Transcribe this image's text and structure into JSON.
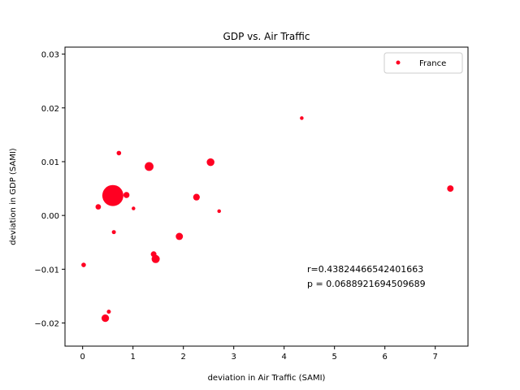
{
  "chart_data": {
    "type": "scatter",
    "title": "GDP vs. Air Traffic",
    "xlabel": "deviation in Air Traffic (SAMI)",
    "ylabel": "deviation in GDP (SAMI)",
    "xlim": [
      -0.35,
      7.65
    ],
    "ylim": [
      -0.0243,
      0.0313
    ],
    "xticks": [
      0,
      1,
      2,
      3,
      4,
      5,
      6,
      7
    ],
    "xtick_labels": [
      "0",
      "1",
      "2",
      "3",
      "4",
      "5",
      "6",
      "7"
    ],
    "yticks": [
      -0.02,
      -0.01,
      0.0,
      0.01,
      0.02,
      0.03
    ],
    "ytick_labels": [
      "−0.02",
      "−0.01",
      "0.00",
      "0.01",
      "0.02",
      "0.03"
    ],
    "grid": false,
    "legend_position": "top-right",
    "series": [
      {
        "name": "France",
        "color": "#ff0022",
        "points": [
          {
            "x": 0.02,
            "y": -0.0092,
            "size": 14
          },
          {
            "x": 0.31,
            "y": 0.0016,
            "size": 20
          },
          {
            "x": 0.45,
            "y": -0.0191,
            "size": 38
          },
          {
            "x": 0.52,
            "y": -0.0179,
            "size": 11
          },
          {
            "x": 0.6,
            "y": 0.0037,
            "size": 300
          },
          {
            "x": 0.62,
            "y": -0.0031,
            "size": 11
          },
          {
            "x": 0.72,
            "y": 0.0116,
            "size": 14
          },
          {
            "x": 0.87,
            "y": 0.0038,
            "size": 25
          },
          {
            "x": 1.01,
            "y": 0.0013,
            "size": 9
          },
          {
            "x": 1.32,
            "y": 0.0091,
            "size": 52
          },
          {
            "x": 1.41,
            "y": -0.0072,
            "size": 22
          },
          {
            "x": 1.45,
            "y": -0.0081,
            "size": 45
          },
          {
            "x": 1.92,
            "y": -0.0039,
            "size": 35
          },
          {
            "x": 2.26,
            "y": 0.0034,
            "size": 30
          },
          {
            "x": 2.54,
            "y": 0.0099,
            "size": 40
          },
          {
            "x": 2.71,
            "y": 0.0008,
            "size": 9
          },
          {
            "x": 4.35,
            "y": 0.0181,
            "size": 9
          },
          {
            "x": 7.3,
            "y": 0.005,
            "size": 28
          }
        ]
      }
    ],
    "annotations": [
      "r=0.43824466542401663",
      "p = 0.0688921694509689"
    ]
  }
}
